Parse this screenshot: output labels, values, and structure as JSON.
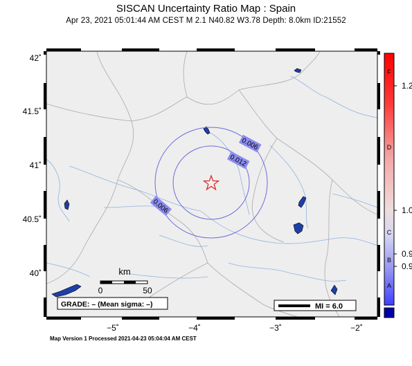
{
  "title": "SISCAN Uncertainty Ratio Map : Spain",
  "subtitle": "Apr 23, 2021 05:01:44 AM CEST   M 2.1   N40.82 W3.78   Depth: 8.0km   ID:21552",
  "footer": "Map Version 1 Processed 2021-04-23 05:04:04 AM CEST",
  "lat_labels": [
    "42˚",
    "41.5˚",
    "41˚",
    "40.5˚",
    "40˚"
  ],
  "lon_labels": [
    "−5˚",
    "−4˚",
    "−3˚",
    "−2˚"
  ],
  "contour_labels": [
    "0.006",
    "0.012",
    "0.006"
  ],
  "scalebar": {
    "unit": "km",
    "start": "0",
    "end": "50"
  },
  "grade_box": "GRADE: – (Mean sigma: –)",
  "mi_box": "MI = 6.0",
  "colorbar": {
    "letters": [
      "F",
      "D",
      "C",
      "B",
      "A"
    ],
    "ticks": [
      "1.2",
      "1.0",
      "0.9",
      "0.9"
    ],
    "colors": {
      "top": "#ff0000",
      "mid": "#f4c6c6",
      "low": "#c8c8ee",
      "bottom": "#4040ff",
      "base": "#0000aa"
    }
  },
  "epicenter": {
    "lat": 40.82,
    "lon": -3.78,
    "color": "#e02020"
  },
  "colors": {
    "land": "#eeeeee",
    "water": "#1e3fa8",
    "river": "#8fb2df",
    "border": "#aaaaaa",
    "contour": "#6b6bd9",
    "label_bg": "#8c8cf0"
  }
}
